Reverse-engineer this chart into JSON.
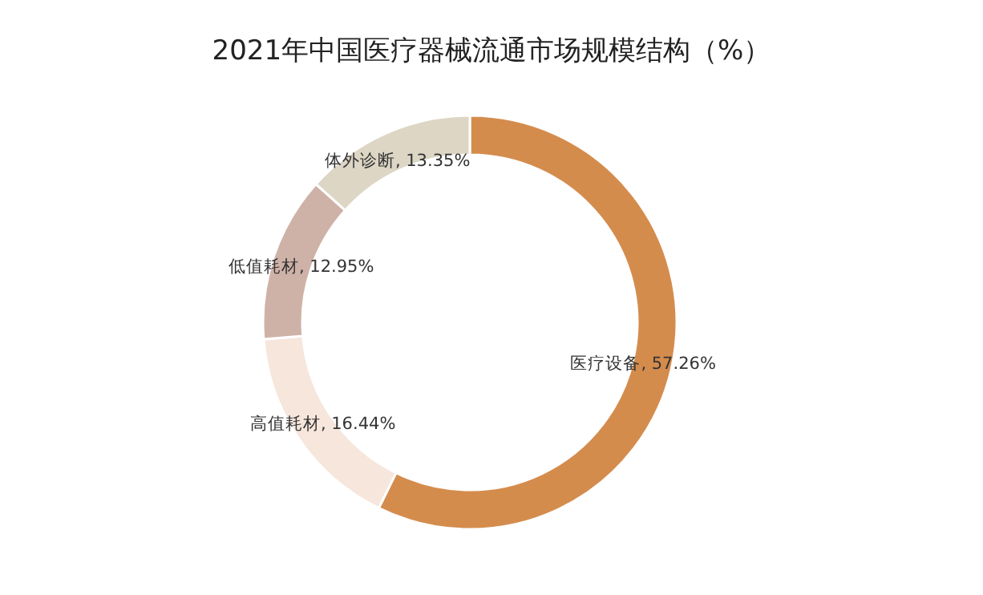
{
  "chart_data": {
    "type": "donut",
    "title": "2021年中国医疗器械流通市场规模结构（%）",
    "categories": [
      "医疗设备",
      "高值耗材",
      "低值耗材",
      "体外诊断"
    ],
    "values": [
      57.26,
      16.44,
      12.95,
      13.35
    ],
    "colors": [
      "#d48c4d",
      "#f6e6db",
      "#cfb2a7",
      "#ddd6c5"
    ],
    "value_labels": [
      ", 57.26%",
      ", 16.44%",
      ", 12.95%",
      ", 13.35%"
    ],
    "legend": false
  }
}
